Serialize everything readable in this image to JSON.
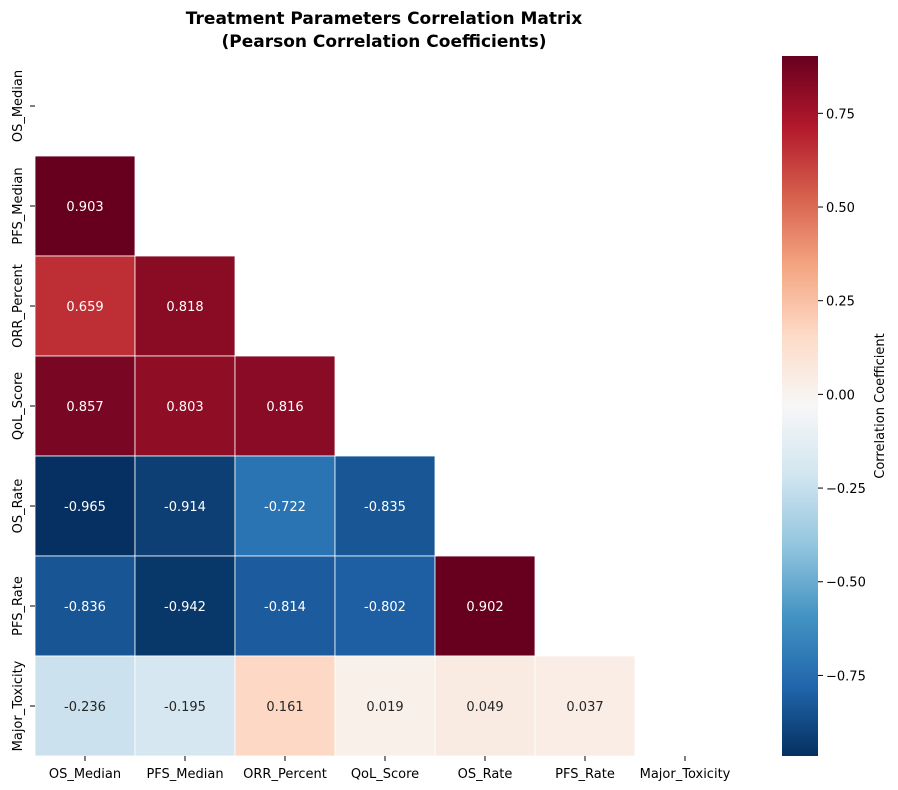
{
  "chart_data": {
    "type": "heatmap",
    "title_lines": [
      "Treatment Parameters Correlation Matrix",
      "(Pearson Correlation Coefficients)"
    ],
    "row_labels": [
      "OS_Median",
      "PFS_Median",
      "ORR_Percent",
      "QoL_Score",
      "OS_Rate",
      "PFS_Rate",
      "Major_Toxicity"
    ],
    "col_labels": [
      "OS_Median",
      "PFS_Median",
      "ORR_Percent",
      "QoL_Score",
      "OS_Rate",
      "PFS_Rate",
      "Major_Toxicity"
    ],
    "mask": "upper-triangle-including-diagonal",
    "values": [
      [
        null,
        null,
        null,
        null,
        null,
        null,
        null
      ],
      [
        0.903,
        null,
        null,
        null,
        null,
        null,
        null
      ],
      [
        0.659,
        0.818,
        null,
        null,
        null,
        null,
        null
      ],
      [
        0.857,
        0.803,
        0.816,
        null,
        null,
        null,
        null
      ],
      [
        -0.965,
        -0.914,
        -0.722,
        -0.835,
        null,
        null,
        null
      ],
      [
        -0.836,
        -0.942,
        -0.814,
        -0.802,
        0.902,
        null,
        null
      ],
      [
        -0.236,
        -0.195,
        0.161,
        0.019,
        0.049,
        0.037,
        null
      ]
    ],
    "value_format": "3 decimals",
    "colormap": "RdBu_r",
    "color_range": [
      -0.965,
      0.903
    ],
    "colorbar": {
      "label": "Correlation Coefficient",
      "ticks": [
        "0.75",
        "0.50",
        "0.25",
        "0.00",
        "−0.25",
        "−0.50",
        "−0.75"
      ],
      "tick_values": [
        0.75,
        0.5,
        0.25,
        0,
        -0.25,
        -0.5,
        -0.75
      ]
    }
  }
}
